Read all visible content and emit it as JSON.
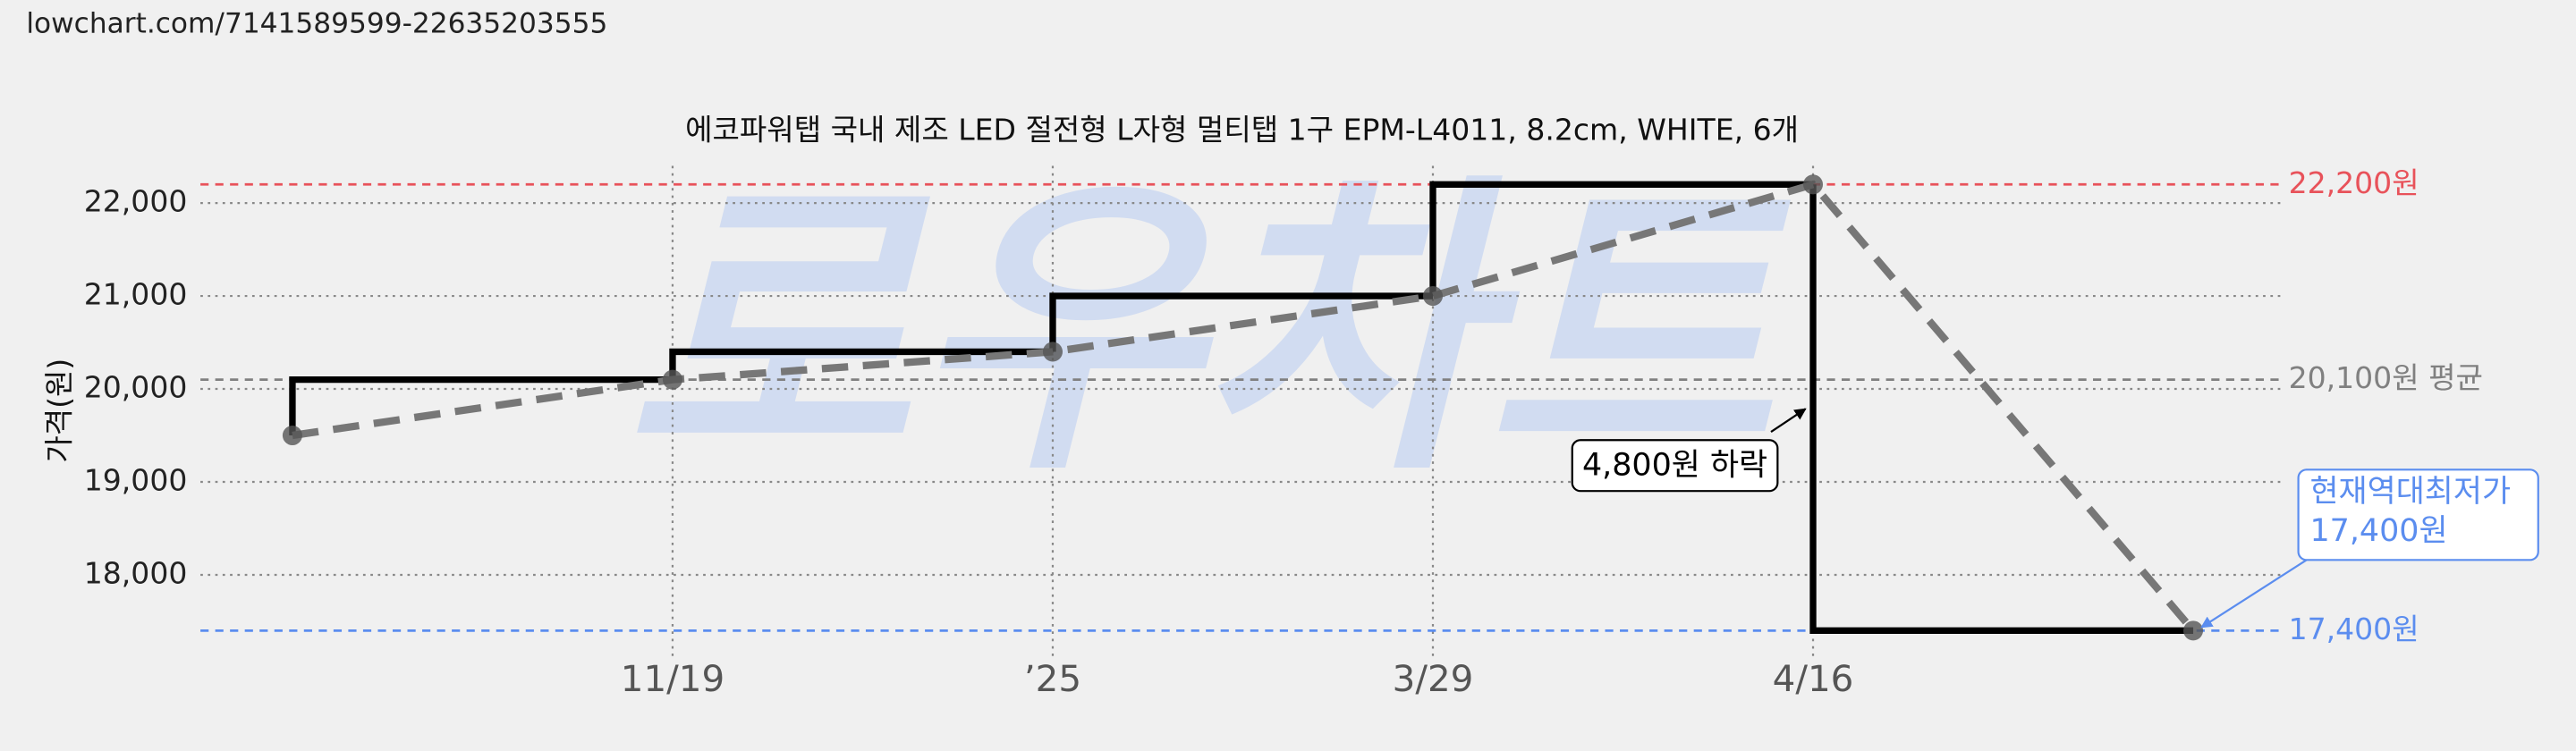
{
  "page_url": "lowchart.com/7141589599-22635203555",
  "chart_data": {
    "type": "step-line",
    "title": "에코파워탭 국내 제조 LED 절전형 L자형 멀티탭 1구 EPM-L4011, 8.2cm, WHITE, 6개",
    "y_label": "가격(원)",
    "watermark": "로우차트",
    "categories": [
      null,
      "11/19",
      "’25",
      "3/29",
      "4/16",
      null
    ],
    "values": [
      19500,
      20100,
      20400,
      21000,
      22200,
      17400
    ],
    "color": "#000000",
    "trend_color": "#777777",
    "ylim": [
      17100,
      22400
    ],
    "yticks": [
      {
        "value": 18000,
        "label": "18,000"
      },
      {
        "value": 19000,
        "label": "19,000"
      },
      {
        "value": 20000,
        "label": "20,000"
      },
      {
        "value": 21000,
        "label": "21,000"
      },
      {
        "value": 22000,
        "label": "22,000"
      }
    ],
    "grid": true,
    "reference_lines": [
      {
        "value": 22200,
        "label": "22,200원",
        "color": "#e8525a"
      },
      {
        "value": 20100,
        "label": "20,100원 평균",
        "color": "#808080"
      },
      {
        "value": 17400,
        "label": "17,400원",
        "color": "#5b8def"
      }
    ],
    "annotations": [
      {
        "text": "4,800원 하락",
        "value": 4800
      },
      {
        "lines": [
          "현재역대최저가",
          "17,400원"
        ],
        "value": 17400
      }
    ]
  }
}
